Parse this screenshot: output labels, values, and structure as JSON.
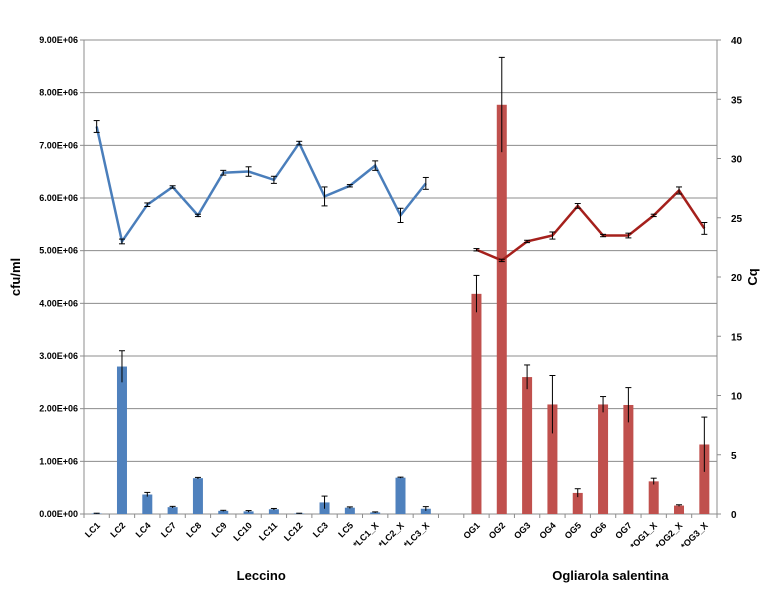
{
  "chart_data": {
    "type": "bar",
    "title": "",
    "ylabel": "cfu/ml",
    "y2label": "Cq",
    "ylim": [
      0,
      9000000
    ],
    "y2lim": [
      0,
      40
    ],
    "yticks": [
      "0.00E+00",
      "1.00E+06",
      "2.00E+06",
      "3.00E+06",
      "4.00E+06",
      "5.00E+06",
      "6.00E+06",
      "7.00E+06",
      "8.00E+06",
      "9.00E+06"
    ],
    "y2ticks": [
      "0",
      "5",
      "10",
      "15",
      "20",
      "25",
      "30",
      "35",
      "40"
    ],
    "grid": true,
    "groups": [
      {
        "name": "Leccino",
        "color": "#4f81bd",
        "categories": [
          "LC1",
          "LC2",
          "LC4",
          "LC7",
          "LC8",
          "LC9",
          "LC10",
          "LC11",
          "LC12",
          "LC3",
          "LC5",
          "*LC1_X",
          "*LC2_X",
          "*LC3_X"
        ],
        "cfu": [
          10000,
          2800000,
          370000,
          130000,
          680000,
          60000,
          50000,
          90000,
          10000,
          220000,
          120000,
          30000,
          690000,
          100000
        ],
        "cfu_err": [
          5000,
          300000,
          40000,
          15000,
          15000,
          10000,
          15000,
          15000,
          5000,
          120000,
          15000,
          10000,
          10000,
          40000
        ],
        "cq": [
          32.7,
          23.0,
          26.1,
          27.6,
          25.2,
          28.8,
          28.9,
          28.2,
          31.3,
          26.8,
          27.7,
          29.4,
          25.2,
          27.9
        ],
        "cq_err": [
          0.5,
          0.2,
          0.15,
          0.1,
          0.1,
          0.2,
          0.4,
          0.3,
          0.15,
          0.8,
          0.1,
          0.4,
          0.6,
          0.5
        ]
      },
      {
        "name": "Ogliarola salentina",
        "color": "#c0504d",
        "categories": [
          "OG1",
          "OG2",
          "OG3",
          "OG4",
          "OG5",
          "OG6",
          "OG7",
          "*OG1_X",
          "*OG2_X",
          "*OG3_X"
        ],
        "cfu": [
          4180000,
          7770000,
          2600000,
          2080000,
          400000,
          2080000,
          2070000,
          620000,
          160000,
          1320000
        ],
        "cfu_err": [
          350000,
          900000,
          230000,
          550000,
          80000,
          150000,
          330000,
          60000,
          15000,
          520000
        ],
        "cq": [
          22.3,
          21.4,
          23.0,
          23.5,
          26.0,
          23.5,
          23.5,
          25.2,
          27.3,
          24.1
        ],
        "cq_err": [
          0.1,
          0.1,
          0.1,
          0.3,
          0.2,
          0.1,
          0.2,
          0.1,
          0.3,
          0.5
        ]
      }
    ]
  }
}
